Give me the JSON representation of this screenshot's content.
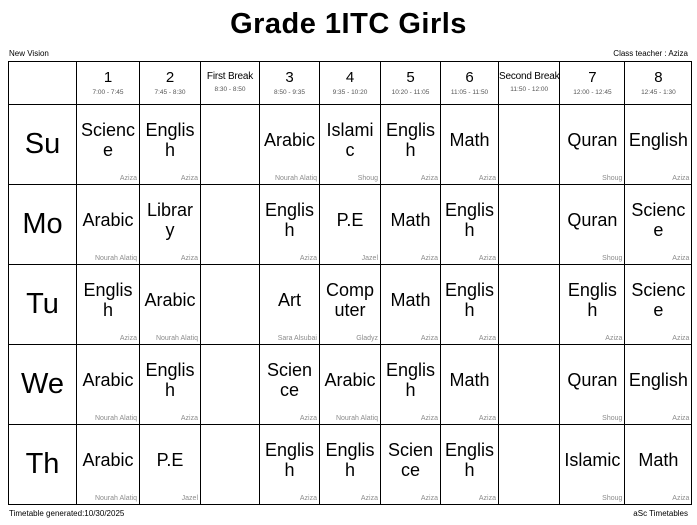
{
  "header": {
    "title": "Grade 1ITC Girls",
    "school_name": "New Vision",
    "class_teacher": "Class teacher : Aziza"
  },
  "footer": {
    "generated": "Timetable generated:10/30/2025",
    "app_name": "aSc Timetables"
  },
  "colors": {
    "background": "#ffffff",
    "grid_border": "#000000",
    "teacher_text": "#8c8c8c",
    "time_text": "#555555"
  },
  "timetable": {
    "columns": [
      {
        "id": "1",
        "label": "1",
        "time": "7:00 - 7:45",
        "is_break": false
      },
      {
        "id": "2",
        "label": "2",
        "time": "7:45 - 8:30",
        "is_break": false
      },
      {
        "id": "first-break",
        "label": "First Break",
        "time": "8:30 - 8:50",
        "is_break": true
      },
      {
        "id": "3",
        "label": "3",
        "time": "8:50 - 9:35",
        "is_break": false
      },
      {
        "id": "4",
        "label": "4",
        "time": "9:35 - 10:20",
        "is_break": false
      },
      {
        "id": "5",
        "label": "5",
        "time": "10:20 - 11:05",
        "is_break": false
      },
      {
        "id": "6",
        "label": "6",
        "time": "11:05 - 11:50",
        "is_break": false
      },
      {
        "id": "second-break",
        "label": "Second Break",
        "time": "11:50 - 12:00",
        "is_break": true
      },
      {
        "id": "7",
        "label": "7",
        "time": "12:00 - 12:45",
        "is_break": false
      },
      {
        "id": "8",
        "label": "8",
        "time": "12:45 - 1:30",
        "is_break": false
      }
    ],
    "days": [
      {
        "day": "Su",
        "cells": [
          {
            "subject": "Science",
            "teacher": "Aziza"
          },
          {
            "subject": "English",
            "teacher": "Aziza"
          },
          null,
          {
            "subject": "Arabic",
            "teacher": "Nourah Alatiq"
          },
          {
            "subject": "Islamic",
            "teacher": "Shoug"
          },
          {
            "subject": "English",
            "teacher": "Aziza"
          },
          {
            "subject": "Math",
            "teacher": "Aziza"
          },
          null,
          {
            "subject": "Quran",
            "teacher": "Shoug"
          },
          {
            "subject": "English",
            "teacher": "Aziza"
          }
        ]
      },
      {
        "day": "Mo",
        "cells": [
          {
            "subject": "Arabic",
            "teacher": "Nourah Alatiq"
          },
          {
            "subject": "Library",
            "teacher": "Aziza"
          },
          null,
          {
            "subject": "English",
            "teacher": "Aziza"
          },
          {
            "subject": "P.E",
            "teacher": "Jazel"
          },
          {
            "subject": "Math",
            "teacher": "Aziza"
          },
          {
            "subject": "English",
            "teacher": "Aziza"
          },
          null,
          {
            "subject": "Quran",
            "teacher": "Shoug"
          },
          {
            "subject": "Science",
            "teacher": "Aziza"
          }
        ]
      },
      {
        "day": "Tu",
        "cells": [
          {
            "subject": "English",
            "teacher": "Aziza"
          },
          {
            "subject": "Arabic",
            "teacher": "Nourah Alatiq"
          },
          null,
          {
            "subject": "Art",
            "teacher": "Sara Alsubai"
          },
          {
            "subject": "Computer",
            "teacher": "Gladyz"
          },
          {
            "subject": "Math",
            "teacher": "Aziza"
          },
          {
            "subject": "English",
            "teacher": "Aziza"
          },
          null,
          {
            "subject": "English",
            "teacher": "Aziza"
          },
          {
            "subject": "Science",
            "teacher": "Aziza"
          }
        ]
      },
      {
        "day": "We",
        "cells": [
          {
            "subject": "Arabic",
            "teacher": "Nourah Alatiq"
          },
          {
            "subject": "English",
            "teacher": "Aziza"
          },
          null,
          {
            "subject": "Science",
            "teacher": "Aziza"
          },
          {
            "subject": "Arabic",
            "teacher": "Nourah Alatiq"
          },
          {
            "subject": "English",
            "teacher": "Aziza"
          },
          {
            "subject": "Math",
            "teacher": "Aziza"
          },
          null,
          {
            "subject": "Quran",
            "teacher": "Shoug"
          },
          {
            "subject": "English",
            "teacher": "Aziza"
          }
        ]
      },
      {
        "day": "Th",
        "cells": [
          {
            "subject": "Arabic",
            "teacher": "Nourah Alatiq"
          },
          {
            "subject": "P.E",
            "teacher": "Jazel"
          },
          null,
          {
            "subject": "English",
            "teacher": "Aziza"
          },
          {
            "subject": "English",
            "teacher": "Aziza"
          },
          {
            "subject": "Science",
            "teacher": "Aziza"
          },
          {
            "subject": "English",
            "teacher": "Aziza"
          },
          null,
          {
            "subject": "Islamic",
            "teacher": "Shoug"
          },
          {
            "subject": "Math",
            "teacher": "Aziza"
          }
        ]
      }
    ]
  }
}
